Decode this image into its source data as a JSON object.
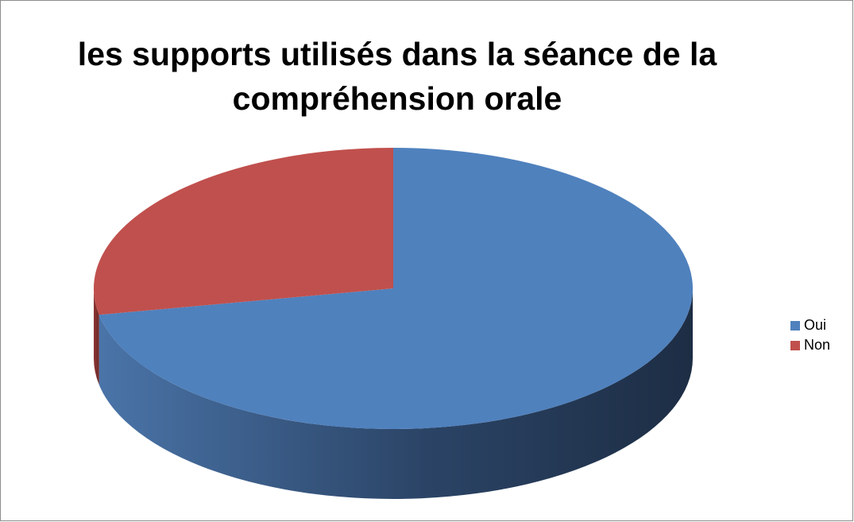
{
  "chart_data": {
    "type": "pie3d",
    "title": "les supports utilisés dans la séance de la compréhension orale",
    "categories": [
      "Oui",
      "Non"
    ],
    "values": [
      72,
      28
    ],
    "colors": [
      "#4f81bd",
      "#c0504d"
    ],
    "legend": "right"
  }
}
